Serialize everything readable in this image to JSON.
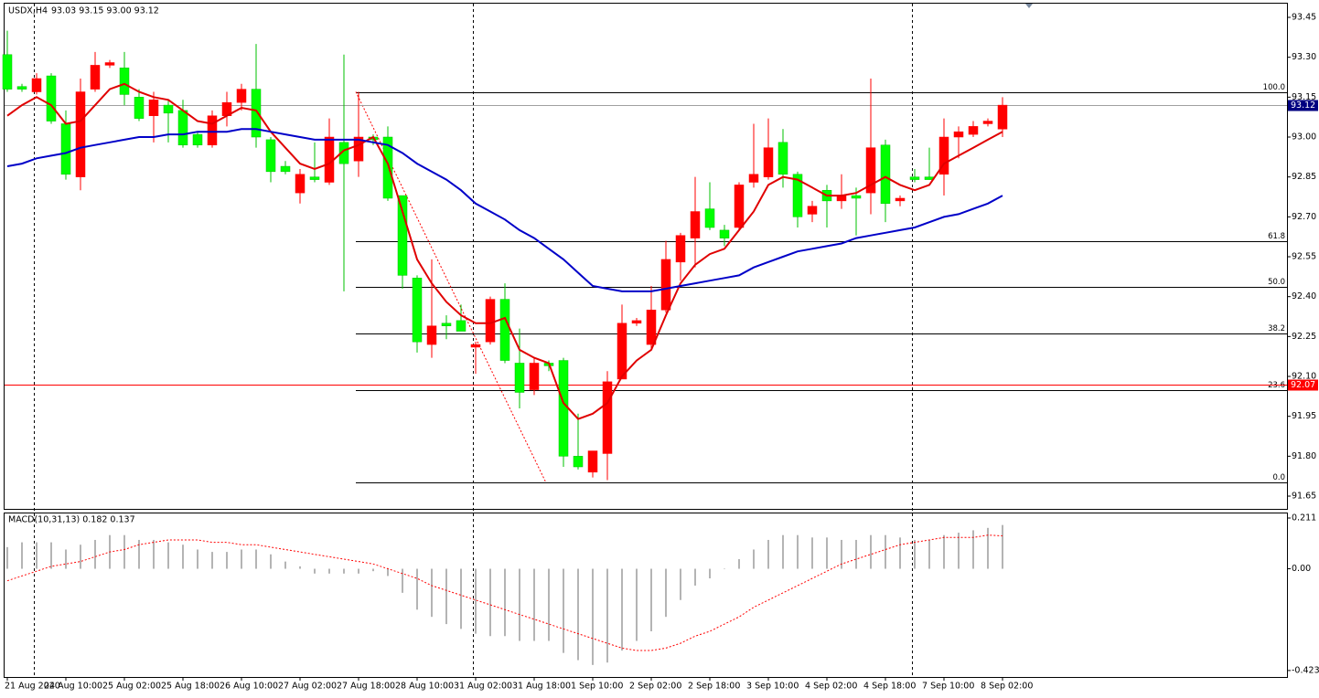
{
  "chart_data": [
    {
      "type": "candlestick",
      "title": "USDX,H4",
      "subtitle": "93.03 93.15 93.00 93.12",
      "categories": [
        "21 Aug 2020",
        null,
        null,
        null,
        "24 Aug 10:00",
        null,
        null,
        null,
        "25 Aug 02:00",
        null,
        null,
        null,
        "25 Aug 18:00",
        null,
        null,
        null,
        "26 Aug 10:00",
        null,
        null,
        null,
        "27 Aug 02:00",
        null,
        null,
        null,
        "27 Aug 18:00",
        null,
        null,
        null,
        "28 Aug 10:00",
        null,
        null,
        null,
        "31 Aug 02:00",
        null,
        null,
        null,
        "31 Aug 18:00",
        null,
        null,
        null,
        "1 Sep 10:00",
        null,
        null,
        null,
        "2 Sep 02:00",
        null,
        null,
        null,
        "2 Sep 18:00",
        null,
        null,
        null,
        "3 Sep 10:00",
        null,
        null,
        null,
        "4 Sep 02:00",
        null,
        null,
        null,
        "4 Sep 18:00",
        null,
        null,
        null,
        "7 Sep 10:00",
        null,
        null,
        null,
        "8 Sep 02:00"
      ],
      "open": [
        93.31,
        93.19,
        93.17,
        93.23,
        93.05,
        92.85,
        93.18,
        93.27,
        93.26,
        93.15,
        93.08,
        93.12,
        93.1,
        93.01,
        92.97,
        93.08,
        93.13,
        93.18,
        92.99,
        92.89,
        92.79,
        92.85,
        92.83,
        92.98,
        92.91,
        93.0,
        93.0,
        92.78,
        92.47,
        92.22,
        92.3,
        92.31,
        92.21,
        92.23,
        92.39,
        92.15,
        92.05,
        92.15,
        92.16,
        91.8,
        91.74,
        91.81,
        92.09,
        92.3,
        92.22,
        92.35,
        92.53,
        92.62,
        92.73,
        92.65,
        92.66,
        92.83,
        92.85,
        92.98,
        92.86,
        92.71,
        92.8,
        92.76,
        92.78,
        92.79,
        92.97,
        92.76,
        92.85,
        92.85,
        92.86,
        93.0,
        93.01,
        93.05,
        93.03
      ],
      "high": [
        93.4,
        93.2,
        93.24,
        93.24,
        93.1,
        93.22,
        93.32,
        93.29,
        93.32,
        93.18,
        93.17,
        93.14,
        93.14,
        93.02,
        93.1,
        93.17,
        93.2,
        93.35,
        93.0,
        92.91,
        92.88,
        92.98,
        93.07,
        93.31,
        93.17,
        93.01,
        93.04,
        92.78,
        92.48,
        92.54,
        92.33,
        92.37,
        92.23,
        92.4,
        92.45,
        92.28,
        92.17,
        92.16,
        92.17,
        91.96,
        91.82,
        92.12,
        92.37,
        92.32,
        92.44,
        92.61,
        92.64,
        92.85,
        92.83,
        92.67,
        92.83,
        93.05,
        93.07,
        93.03,
        92.87,
        92.76,
        92.82,
        92.86,
        92.81,
        93.22,
        92.99,
        92.78,
        92.88,
        92.96,
        93.07,
        93.04,
        93.06,
        93.07,
        93.15
      ],
      "low": [
        93.17,
        93.17,
        93.16,
        93.05,
        92.84,
        92.8,
        93.17,
        93.26,
        93.12,
        93.06,
        92.98,
        92.98,
        92.96,
        92.96,
        92.96,
        93.04,
        93.1,
        92.96,
        92.83,
        92.86,
        92.75,
        92.83,
        92.82,
        92.42,
        92.85,
        92.97,
        92.76,
        92.43,
        92.19,
        92.17,
        92.24,
        92.27,
        92.11,
        92.22,
        92.15,
        91.98,
        92.03,
        92.12,
        91.76,
        91.75,
        91.72,
        91.71,
        92.09,
        92.29,
        92.2,
        92.34,
        92.46,
        92.51,
        92.65,
        92.59,
        92.65,
        92.81,
        92.84,
        92.81,
        92.66,
        92.68,
        92.66,
        92.73,
        92.63,
        92.71,
        92.68,
        92.74,
        92.83,
        92.84,
        92.78,
        92.92,
        93.0,
        93.04,
        93.0
      ],
      "close": [
        93.18,
        93.18,
        93.22,
        93.06,
        92.86,
        93.17,
        93.27,
        93.28,
        93.16,
        93.07,
        93.14,
        93.09,
        92.97,
        92.97,
        93.08,
        93.13,
        93.18,
        93.0,
        92.87,
        92.87,
        92.86,
        92.84,
        93.0,
        92.9,
        93.0,
        92.99,
        92.77,
        92.48,
        92.23,
        92.29,
        92.29,
        92.27,
        92.22,
        92.39,
        92.16,
        92.04,
        92.15,
        92.14,
        91.8,
        91.76,
        91.82,
        92.08,
        92.3,
        92.31,
        92.35,
        92.54,
        92.63,
        92.72,
        92.66,
        92.62,
        92.82,
        92.86,
        92.96,
        92.86,
        92.7,
        92.74,
        92.76,
        92.78,
        92.77,
        92.96,
        92.75,
        92.77,
        92.84,
        92.84,
        93.0,
        93.02,
        93.04,
        93.06,
        93.12
      ],
      "up_color": "#ff0000",
      "down_color": "#00ff00",
      "wick_color": "#00c000",
      "moving_averages": [
        {
          "color": "#e00000",
          "values": [
            93.08,
            93.12,
            93.15,
            93.12,
            93.05,
            93.06,
            93.12,
            93.18,
            93.2,
            93.17,
            93.15,
            93.14,
            93.1,
            93.06,
            93.05,
            93.08,
            93.11,
            93.1,
            93.02,
            92.96,
            92.9,
            92.88,
            92.9,
            92.95,
            92.97,
            93.0,
            92.9,
            92.72,
            92.54,
            92.45,
            92.38,
            92.33,
            92.3,
            92.3,
            92.32,
            92.2,
            92.17,
            92.15,
            92.0,
            91.94,
            91.96,
            92.0,
            92.1,
            92.16,
            92.2,
            92.33,
            92.45,
            92.52,
            92.56,
            92.58,
            92.65,
            92.72,
            92.82,
            92.85,
            92.84,
            92.81,
            92.78,
            92.78,
            92.79,
            92.82,
            92.85,
            92.82,
            92.8,
            92.82,
            92.9,
            92.93,
            92.96,
            92.99,
            93.02
          ]
        },
        {
          "color": "#0000c8",
          "values": [
            92.89,
            92.9,
            92.92,
            92.93,
            92.94,
            92.96,
            92.97,
            92.98,
            92.99,
            93.0,
            93.0,
            93.01,
            93.01,
            93.02,
            93.02,
            93.02,
            93.03,
            93.03,
            93.02,
            93.01,
            93.0,
            92.99,
            92.99,
            92.99,
            92.99,
            92.98,
            92.97,
            92.94,
            92.9,
            92.87,
            92.84,
            92.8,
            92.75,
            92.72,
            92.69,
            92.65,
            92.62,
            92.58,
            92.54,
            92.49,
            92.44,
            92.43,
            92.42,
            92.42,
            92.42,
            92.43,
            92.44,
            92.45,
            92.46,
            92.47,
            92.48,
            92.51,
            92.53,
            92.55,
            92.57,
            92.58,
            92.59,
            92.6,
            92.62,
            92.63,
            92.64,
            92.65,
            92.66,
            92.68,
            92.7,
            92.71,
            92.73,
            92.75,
            92.78
          ]
        }
      ],
      "fib_levels": [
        {
          "value": 93.17,
          "label": "100.0"
        },
        {
          "value": 92.608,
          "label": "61.8"
        },
        {
          "value": 92.435,
          "label": "50.0"
        },
        {
          "value": 92.262,
          "label": "38.2"
        },
        {
          "value": 92.047,
          "label": "23.6"
        },
        {
          "value": 91.7,
          "label": "0.0"
        }
      ],
      "fib_color": "#000000",
      "hlines": [
        {
          "value": 93.12,
          "label": "93.12",
          "color": "#a0a0a0",
          "tag_color": "#000080"
        },
        {
          "value": 92.07,
          "label": "92.07",
          "color": "#ff0000",
          "tag_color": "#ff0000"
        }
      ],
      "ylim": [
        91.602,
        93.505
      ],
      "yticks": [
        93.45,
        {
          "value": 93.3,
          "label": "93.30"
        },
        93.15,
        {
          "value": 93,
          "label": "93.00"
        },
        92.85,
        {
          "value": 92.7,
          "label": "92.70"
        },
        92.55,
        {
          "value": 92.4,
          "label": "92.40"
        },
        92.25,
        {
          "value": 92.1,
          "label": "92.10"
        },
        91.95,
        {
          "value": 91.8,
          "label": "91.80"
        },
        91.65
      ]
    },
    {
      "type": "macd",
      "title": "MACD(10,31,13) 0.182 0.137",
      "histogram": [
        0.09,
        0.11,
        0.11,
        0.11,
        0.08,
        0.1,
        0.12,
        0.14,
        0.14,
        0.12,
        0.12,
        0.11,
        0.1,
        0.08,
        0.07,
        0.07,
        0.08,
        0.08,
        0.06,
        0.03,
        0.01,
        -0.02,
        -0.02,
        -0.02,
        -0.02,
        -0.01,
        -0.03,
        -0.1,
        -0.17,
        -0.2,
        -0.23,
        -0.25,
        -0.27,
        -0.28,
        -0.28,
        -0.3,
        -0.3,
        -0.3,
        -0.35,
        -0.38,
        -0.4,
        -0.39,
        -0.34,
        -0.3,
        -0.26,
        -0.2,
        -0.13,
        -0.07,
        -0.04,
        0.0,
        0.04,
        0.08,
        0.12,
        0.14,
        0.14,
        0.13,
        0.13,
        0.12,
        0.12,
        0.14,
        0.14,
        0.13,
        0.12,
        0.12,
        0.14,
        0.15,
        0.16,
        0.17,
        0.182
      ],
      "signal": [
        -0.05,
        -0.03,
        -0.01,
        0.01,
        0.02,
        0.03,
        0.05,
        0.07,
        0.08,
        0.1,
        0.11,
        0.12,
        0.12,
        0.12,
        0.11,
        0.11,
        0.1,
        0.1,
        0.09,
        0.08,
        0.07,
        0.06,
        0.05,
        0.04,
        0.03,
        0.02,
        0.0,
        -0.02,
        -0.04,
        -0.07,
        -0.09,
        -0.11,
        -0.13,
        -0.15,
        -0.17,
        -0.19,
        -0.21,
        -0.23,
        -0.25,
        -0.27,
        -0.29,
        -0.31,
        -0.33,
        -0.34,
        -0.34,
        -0.33,
        -0.31,
        -0.28,
        -0.26,
        -0.23,
        -0.2,
        -0.16,
        -0.13,
        -0.1,
        -0.07,
        -0.04,
        -0.01,
        0.02,
        0.04,
        0.06,
        0.08,
        0.1,
        0.11,
        0.12,
        0.13,
        0.13,
        0.13,
        0.14,
        0.137
      ],
      "histogram_color": "#b4b4b4",
      "signal_color": "#ff0000",
      "ylim": [
        -0.45,
        0.23
      ],
      "yticks": [
        0.211,
        {
          "value": 0,
          "label": "0.00"
        },
        -0.423
      ]
    }
  ]
}
